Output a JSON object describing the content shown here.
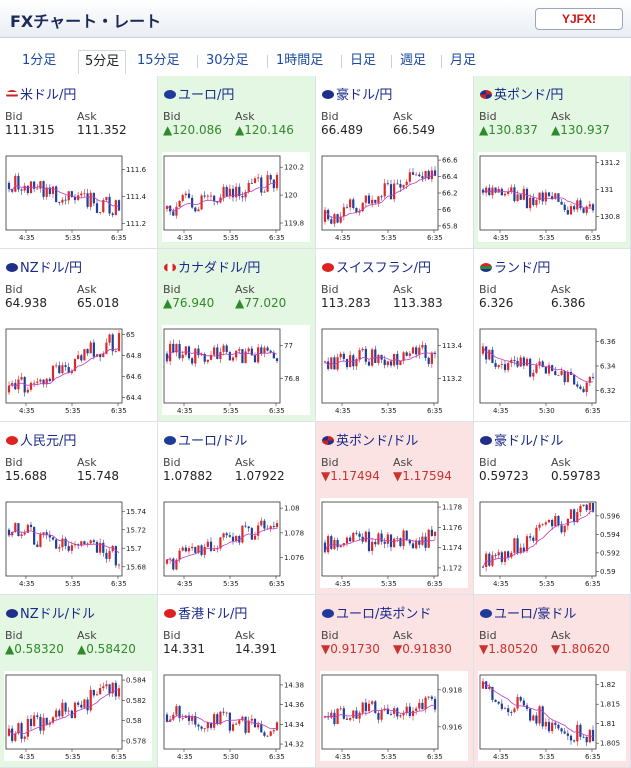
{
  "header": {
    "title": "FXチャート・レート",
    "logo_text": "YJFX!",
    "logo_sub": "YJFX"
  },
  "tabs": [
    "1分足",
    "5分足",
    "15分足",
    "30分足",
    "1時間足",
    "日足",
    "週足",
    "月足"
  ],
  "active_tab": "5分足",
  "labels": {
    "bid": "Bid",
    "ask": "Ask"
  },
  "colors": {
    "up_bg": "#e4f7e2",
    "down_bg": "#fbe3e3",
    "up_text": "#2f8a2a",
    "down_text": "#c9322e",
    "bull": "#d82a2a",
    "bear": "#1f3f9a",
    "ma": "#c23cc2"
  },
  "panels": [
    {
      "name": "米ドル/円",
      "flag": "us-flag-icon",
      "trend": "none",
      "bid": "111.315",
      "ask": "111.352",
      "chart_data": {
        "type": "candlestick",
        "x_ticks": [
          "4:35",
          "5:35",
          "6:35"
        ],
        "y_ticks": [
          "111.6",
          "111.4",
          "111.2"
        ],
        "ylim": [
          111.15,
          111.7
        ],
        "start": 111.5,
        "end": 111.3
      }
    },
    {
      "name": "ユーロ/円",
      "flag": "eu-flag-icon",
      "trend": "up",
      "bid": "▲120.086",
      "ask": "▲120.146",
      "chart_data": {
        "type": "candlestick",
        "x_ticks": [
          "4:35",
          "5:35",
          "6:35"
        ],
        "y_ticks": [
          "120.2",
          "120",
          "119.8"
        ],
        "ylim": [
          119.75,
          120.28
        ],
        "start": 119.9,
        "end": 120.1
      }
    },
    {
      "name": "豪ドル/円",
      "flag": "au-flag-icon",
      "trend": "none",
      "bid": "66.489",
      "ask": "66.549",
      "chart_data": {
        "type": "candlestick",
        "x_ticks": [
          "4:35",
          "5:35",
          "6:35"
        ],
        "y_ticks": [
          "66.6",
          "66.4",
          "66.2",
          "66",
          "65.8"
        ],
        "ylim": [
          65.75,
          66.65
        ],
        "start": 65.85,
        "end": 66.5
      }
    },
    {
      "name": "英ポンド/円",
      "flag": "uk-flag-icon",
      "trend": "up",
      "bid": "▲130.837",
      "ask": "▲130.937",
      "chart_data": {
        "type": "candlestick",
        "x_ticks": [
          "4:35",
          "5:35",
          "6:35"
        ],
        "y_ticks": [
          "131.2",
          "131",
          "130.8"
        ],
        "ylim": [
          130.7,
          131.25
        ],
        "start": 131.0,
        "end": 130.85
      }
    },
    {
      "name": "NZドル/円",
      "flag": "nz-flag-icon",
      "trend": "none",
      "bid": "64.938",
      "ask": "65.018",
      "chart_data": {
        "type": "candlestick",
        "x_ticks": [
          "4:35",
          "5:35",
          "6:35"
        ],
        "y_ticks": [
          "65",
          "64.8",
          "64.6",
          "64.4"
        ],
        "ylim": [
          64.35,
          65.05
        ],
        "start": 64.45,
        "end": 64.95
      }
    },
    {
      "name": "カナダドル/円",
      "flag": "ca-flag-icon",
      "trend": "up",
      "bid": "▲76.940",
      "ask": "▲77.020",
      "chart_data": {
        "type": "candlestick",
        "x_ticks": [
          "4:35",
          "5:35",
          "6:35"
        ],
        "y_ticks": [
          "77",
          "76.8"
        ],
        "ylim": [
          76.65,
          77.1
        ],
        "start": 76.95,
        "end": 76.95
      }
    },
    {
      "name": "スイスフラン/円",
      "flag": "ch-flag-icon",
      "trend": "none",
      "bid": "113.283",
      "ask": "113.383",
      "chart_data": {
        "type": "candlestick",
        "x_ticks": [
          "4:35",
          "5:35",
          "6:35"
        ],
        "y_ticks": [
          "113.4",
          "113.2"
        ],
        "ylim": [
          113.05,
          113.5
        ],
        "start": 113.3,
        "end": 113.35
      }
    },
    {
      "name": "ランド/円",
      "flag": "za-flag-icon",
      "trend": "none",
      "bid": "6.326",
      "ask": "6.386",
      "chart_data": {
        "type": "candlestick",
        "x_ticks": [
          "4:35",
          "5:30",
          "6:35"
        ],
        "y_ticks": [
          "6.36",
          "6.34",
          "6.32"
        ],
        "ylim": [
          6.31,
          6.37
        ],
        "start": 6.35,
        "end": 6.325
      }
    },
    {
      "name": "人民元/円",
      "flag": "cn-flag-icon",
      "trend": "none",
      "bid": "15.688",
      "ask": "15.748",
      "chart_data": {
        "type": "candlestick",
        "x_ticks": [
          "4:35",
          "5:35",
          "6:35"
        ],
        "y_ticks": [
          "15.74",
          "15.72",
          "15.7",
          "15.68"
        ],
        "ylim": [
          15.67,
          15.75
        ],
        "start": 15.72,
        "end": 15.69
      }
    },
    {
      "name": "ユーロ/ドル",
      "flag": "eu-flag-icon",
      "trend": "none",
      "bid": "1.07882",
      "ask": "1.07922",
      "chart_data": {
        "type": "candlestick",
        "x_ticks": [
          "4:35",
          "5:35",
          "6:35"
        ],
        "y_ticks": [
          "1.08",
          "1.078",
          "1.076"
        ],
        "ylim": [
          1.0745,
          1.0805
        ],
        "start": 1.0755,
        "end": 1.0788
      }
    },
    {
      "name": "英ポンド/ドル",
      "flag": "uk-flag-icon",
      "trend": "down",
      "bid": "▼1.17494",
      "ask": "▼1.17594",
      "chart_data": {
        "type": "candlestick",
        "x_ticks": [
          "4:35",
          "5:35",
          "6:35"
        ],
        "y_ticks": [
          "1.178",
          "1.176",
          "1.174",
          "1.172"
        ],
        "ylim": [
          1.1712,
          1.1785
        ],
        "start": 1.1745,
        "end": 1.1749
      }
    },
    {
      "name": "豪ドル/ドル",
      "flag": "au-flag-icon",
      "trend": "none",
      "bid": "0.59723",
      "ask": "0.59783",
      "chart_data": {
        "type": "candlestick",
        "x_ticks": [
          "4:35",
          "5:35",
          "6:35"
        ],
        "y_ticks": [
          "0.596",
          "0.594",
          "0.592",
          "0.59"
        ],
        "ylim": [
          0.5895,
          0.5975
        ],
        "start": 0.5905,
        "end": 0.5972
      }
    },
    {
      "name": "NZドル/ドル",
      "flag": "nz-flag-icon",
      "trend": "up",
      "bid": "▲0.58320",
      "ask": "▲0.58420",
      "chart_data": {
        "type": "candlestick",
        "x_ticks": [
          "4:35",
          "5:35",
          "6:35"
        ],
        "y_ticks": [
          "0.584",
          "0.582",
          "0.58",
          "0.578"
        ],
        "ylim": [
          0.5772,
          0.5845
        ],
        "start": 0.5785,
        "end": 0.5832
      }
    },
    {
      "name": "香港ドル/円",
      "flag": "hk-flag-icon",
      "trend": "none",
      "bid": "14.331",
      "ask": "14.391",
      "chart_data": {
        "type": "candlestick",
        "x_ticks": [
          "4:35",
          "5:30",
          "6:35"
        ],
        "y_ticks": [
          "14.38",
          "14.36",
          "14.34",
          "14.32"
        ],
        "ylim": [
          14.315,
          14.39
        ],
        "start": 14.35,
        "end": 14.335
      }
    },
    {
      "name": "ユーロ/英ポンド",
      "flag": "eu-flag-icon",
      "trend": "down",
      "bid": "▼0.91730",
      "ask": "▼0.91830",
      "chart_data": {
        "type": "candlestick",
        "x_ticks": [
          "4:35",
          "5:35",
          "6:35"
        ],
        "y_ticks": [
          "0.918",
          "0.916"
        ],
        "ylim": [
          0.9148,
          0.9188
        ],
        "start": 0.9165,
        "end": 0.9173
      }
    },
    {
      "name": "ユーロ/豪ドル",
      "flag": "eu-flag-icon",
      "trend": "down",
      "bid": "▼1.80520",
      "ask": "▼1.80620",
      "chart_data": {
        "type": "candlestick",
        "x_ticks": [
          "4:35",
          "5:35",
          "6:35"
        ],
        "y_ticks": [
          "1.82",
          "1.815",
          "1.81",
          "1.805"
        ],
        "ylim": [
          1.8035,
          1.8225
        ],
        "start": 1.819,
        "end": 1.8055
      }
    }
  ]
}
